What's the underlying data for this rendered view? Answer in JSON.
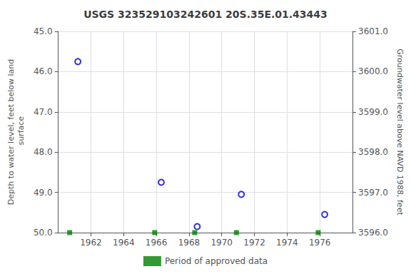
{
  "chart_data": {
    "type": "scatter",
    "title": "USGS 323529103242601 20S.35E.01.43443",
    "ylabel": "Depth to water level, feet below land\n surface",
    "y2label": "Groundwater level above NAVD 1988, feet",
    "xlim": [
      1960.0,
      1978.0
    ],
    "xticks": [
      1962,
      1964,
      1966,
      1968,
      1970,
      1972,
      1974,
      1976
    ],
    "ylim": [
      50.0,
      45.0
    ],
    "yticks": [
      {
        "value": 45.0,
        "label": "45.0"
      },
      {
        "value": 46.0,
        "label": "46.0"
      },
      {
        "value": 47.0,
        "label": "47.0"
      },
      {
        "value": 48.0,
        "label": "48.0"
      },
      {
        "value": 49.0,
        "label": "49.0"
      },
      {
        "value": 50.0,
        "label": "50.0"
      }
    ],
    "y2lim": [
      3596.0,
      3601.0
    ],
    "y2ticks": [
      {
        "value": 3596.0,
        "label": "3596.0"
      },
      {
        "value": 3597.0,
        "label": "3597.0"
      },
      {
        "value": 3598.0,
        "label": "3598.0"
      },
      {
        "value": 3599.0,
        "label": "3599.0"
      },
      {
        "value": 3600.0,
        "label": "3600.0"
      },
      {
        "value": 3601.0,
        "label": "3601.0"
      }
    ],
    "grid": true,
    "legend": "bottom",
    "series": [
      {
        "x": [
          1961.2,
          1966.3,
          1968.5,
          1971.2,
          1976.3
        ],
        "values": [
          45.75,
          48.75,
          49.85,
          49.05,
          49.55
        ],
        "color": "#0000cc",
        "marker": "open_circle"
      },
      {
        "name": "Period of approved data",
        "x": [
          1960.7,
          1965.9,
          1968.35,
          1970.9,
          1975.9
        ],
        "values": [
          50.0,
          50.0,
          50.0,
          50.0,
          50.0
        ],
        "color": "#008000",
        "marker": "square"
      }
    ]
  }
}
